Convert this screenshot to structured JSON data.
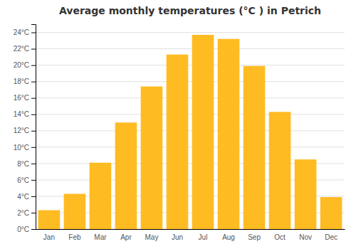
{
  "chart_data": {
    "type": "bar",
    "title": "Average monthly temperatures (°C ) in Petrich",
    "categories": [
      "Jan",
      "Feb",
      "Mar",
      "Apr",
      "May",
      "Jun",
      "Jul",
      "Aug",
      "Sep",
      "Oct",
      "Nov",
      "Dec"
    ],
    "values": [
      2.3,
      4.3,
      8.1,
      13.0,
      17.4,
      21.3,
      23.7,
      23.2,
      19.9,
      14.3,
      8.5,
      3.9
    ],
    "color": "#FFBB22",
    "ylim": [
      0,
      25
    ],
    "yticks": [
      {
        "value": 0,
        "label": "0°C"
      },
      {
        "value": 2,
        "label": "2°C"
      },
      {
        "value": 4,
        "label": "4°C"
      },
      {
        "value": 6,
        "label": "6°C"
      },
      {
        "value": 8,
        "label": "8°C"
      },
      {
        "value": 10,
        "label": "10°C"
      },
      {
        "value": 12,
        "label": "12°C"
      },
      {
        "value": 14,
        "label": "14°C"
      },
      {
        "value": 16,
        "label": "16°C"
      },
      {
        "value": 18,
        "label": "18°C"
      },
      {
        "value": 20,
        "label": "20°C"
      },
      {
        "value": 22,
        "label": "22°C"
      },
      {
        "value": 24,
        "label": "24°C"
      }
    ],
    "grid": true
  }
}
